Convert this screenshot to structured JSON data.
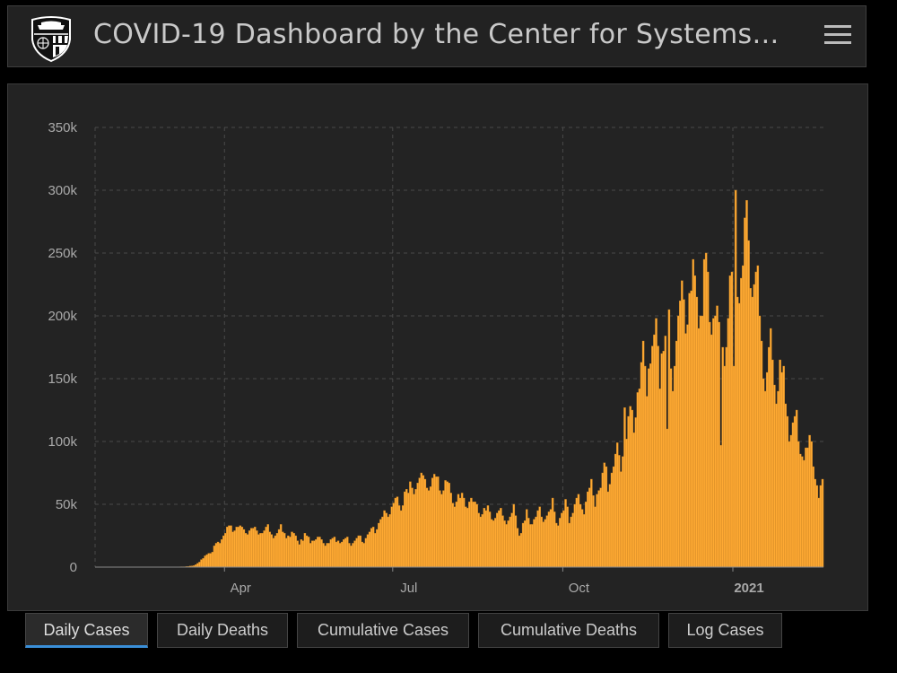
{
  "header": {
    "title": "COVID-19 Dashboard by the Center for Systems…",
    "logo_icon": "university-shield-logo",
    "menu_icon": "hamburger-menu-icon"
  },
  "tabs": [
    {
      "label": "Daily Cases",
      "active": true
    },
    {
      "label": "Daily Deaths",
      "active": false
    },
    {
      "label": "Cumulative Cases",
      "active": false
    },
    {
      "label": "Cumulative Deaths",
      "active": false
    },
    {
      "label": "Log Cases",
      "active": false
    }
  ],
  "colors": {
    "bar": "#ffaa33",
    "accent": "#3a8fd8"
  },
  "chart_data": {
    "type": "bar",
    "title": "",
    "xlabel": "",
    "ylabel": "",
    "x_start": "2020-01-22",
    "x_unit": "day",
    "ylim": [
      0,
      350000
    ],
    "yticks": [
      0,
      50000,
      100000,
      150000,
      200000,
      250000,
      300000,
      350000
    ],
    "ytick_labels": [
      "0",
      "50k",
      "100k",
      "150k",
      "200k",
      "250k",
      "300k",
      "350k"
    ],
    "xticks": [
      {
        "day_index": 70,
        "label": "Apr",
        "bold": false
      },
      {
        "day_index": 161,
        "label": "Jul",
        "bold": false
      },
      {
        "day_index": 253,
        "label": "Oct",
        "bold": false
      },
      {
        "day_index": 345,
        "label": "2021",
        "bold": true
      }
    ],
    "grid": true,
    "values_thousands": [
      0,
      0,
      0,
      0,
      0,
      0,
      0,
      0,
      0,
      0,
      0,
      0,
      0,
      0,
      0,
      0,
      0,
      0,
      0,
      0,
      0,
      0,
      0,
      0,
      0,
      0,
      0,
      0,
      0,
      0,
      0,
      0,
      0,
      0,
      0,
      0,
      0,
      0,
      0,
      0,
      0.1,
      0.1,
      0.1,
      0.1,
      0.1,
      0.2,
      0.3,
      0.3,
      0.3,
      0.5,
      0.6,
      0.9,
      1,
      1.2,
      2,
      3,
      4,
      6,
      7,
      9,
      10,
      11,
      11,
      12,
      17,
      19,
      20,
      19,
      22,
      25,
      27,
      32,
      33,
      33,
      28,
      29,
      32,
      32,
      33,
      32,
      30,
      27,
      26,
      29,
      31,
      31,
      32,
      29,
      26,
      27,
      27,
      29,
      32,
      34,
      28,
      26,
      23,
      25,
      27,
      30,
      34,
      28,
      27,
      23,
      25,
      24,
      28,
      27,
      25,
      21,
      18,
      22,
      21,
      27,
      25,
      24,
      19,
      21,
      21,
      22,
      24,
      24,
      22,
      19,
      17,
      19,
      19,
      22,
      23,
      24,
      20,
      21,
      19,
      20,
      22,
      23,
      24,
      19,
      17,
      19,
      21,
      23,
      25,
      25,
      20,
      19,
      23,
      26,
      28,
      31,
      32,
      27,
      30,
      35,
      38,
      40,
      45,
      43,
      40,
      42,
      48,
      51,
      55,
      56,
      49,
      45,
      49,
      60,
      62,
      59,
      68,
      63,
      58,
      62,
      67,
      71,
      75,
      73,
      70,
      63,
      61,
      64,
      71,
      74,
      72,
      72,
      61,
      58,
      61,
      69,
      68,
      67,
      59,
      51,
      48,
      52,
      58,
      55,
      59,
      55,
      48,
      47,
      52,
      55,
      52,
      52,
      50,
      43,
      40,
      42,
      47,
      45,
      49,
      44,
      38,
      37,
      39,
      43,
      45,
      47,
      41,
      37,
      34,
      37,
      40,
      43,
      50,
      41,
      31,
      25,
      27,
      35,
      37,
      46,
      39,
      34,
      34,
      38,
      40,
      45,
      48,
      40,
      36,
      38,
      41,
      44,
      46,
      55,
      44,
      35,
      33,
      39,
      43,
      45,
      54,
      48,
      35,
      40,
      43,
      50,
      55,
      58,
      50,
      46,
      42,
      52,
      60,
      63,
      70,
      57,
      48,
      58,
      61,
      63,
      75,
      83,
      80,
      60,
      66,
      75,
      80,
      90,
      99,
      89,
      76,
      88,
      127,
      102,
      120,
      128,
      125,
      107,
      119,
      139,
      142,
      163,
      180,
      160,
      136,
      158,
      162,
      176,
      185,
      198,
      176,
      142,
      170,
      172,
      184,
      110,
      205,
      158,
      140,
      160,
      180,
      200,
      212,
      228,
      213,
      186,
      193,
      218,
      220,
      245,
      232,
      215,
      190,
      200,
      200,
      245,
      250,
      235,
      195,
      185,
      198,
      200,
      208,
      195,
      97,
      175,
      160,
      175,
      198,
      232,
      235,
      160,
      300,
      215,
      210,
      230,
      240,
      278,
      292,
      260,
      222,
      215,
      225,
      235,
      240,
      200,
      180,
      150,
      140,
      155,
      175,
      190,
      165,
      145,
      130,
      140,
      165,
      155,
      160,
      130,
      120,
      100,
      105,
      115,
      120,
      125,
      100,
      90,
      88,
      85,
      95,
      95,
      105,
      100,
      80,
      70,
      65,
      55,
      65,
      70
    ]
  }
}
